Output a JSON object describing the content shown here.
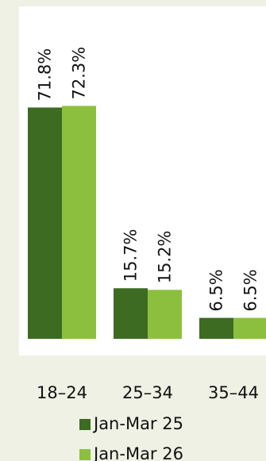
{
  "chart_data": {
    "type": "bar",
    "categories": [
      "18–24",
      "25–34",
      "35–44"
    ],
    "series": [
      {
        "name": "Jan-Mar 25",
        "values": [
          71.8,
          15.7,
          6.5
        ],
        "color": "#3d6b21"
      },
      {
        "name": "Jan-Mar 26",
        "values": [
          72.3,
          15.2,
          6.5
        ],
        "color": "#8dbf3f"
      }
    ],
    "data_labels": [
      [
        "71.8%",
        "15.7%",
        "6.5%"
      ],
      [
        "72.3%",
        "15.2%",
        "6.5%"
      ]
    ],
    "ylim": [
      0,
      80
    ],
    "grid": false,
    "legend_position": "bottom"
  },
  "colors": {
    "background": "#eef1e4",
    "plot_area": "#ffffff"
  }
}
